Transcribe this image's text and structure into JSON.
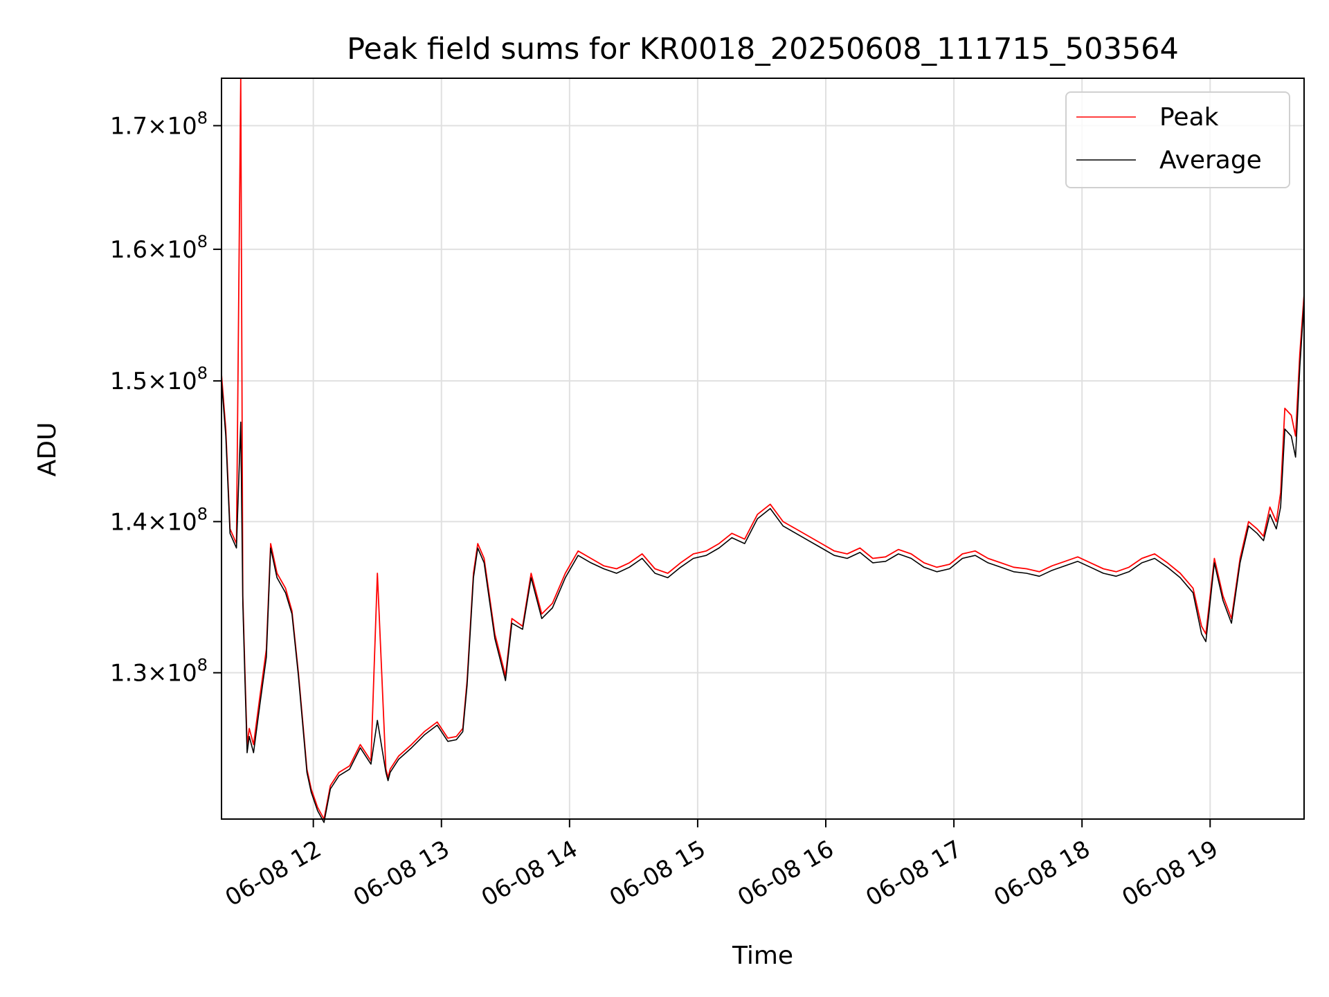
{
  "chart_data": {
    "type": "line",
    "title": "Peak field sums for KR0018_20250608_111715_503564",
    "xlabel": "Time",
    "ylabel": "ADU",
    "y_scale": "log",
    "xlim": [
      "2025-06-08 11:17",
      "2025-06-08 19:44"
    ],
    "ylim": [
      121000000,
      174000000
    ],
    "x_ticks": [
      "06-08 12",
      "06-08 13",
      "06-08 14",
      "06-08 15",
      "06-08 16",
      "06-08 17",
      "06-08 18",
      "06-08 19"
    ],
    "y_ticks": [
      {
        "value": 130000000,
        "mantissa": "1.3",
        "exp": "8"
      },
      {
        "value": 140000000,
        "mantissa": "1.4",
        "exp": "8"
      },
      {
        "value": 150000000,
        "mantissa": "1.5",
        "exp": "8"
      },
      {
        "value": 160000000,
        "mantissa": "1.6",
        "exp": "8"
      },
      {
        "value": 170000000,
        "mantissa": "1.7",
        "exp": "8"
      }
    ],
    "grid": true,
    "legend": "top-right",
    "colors": {
      "Peak": "#ff0000",
      "Average": "#000000",
      "grid": "#e0e0e0"
    },
    "series": [
      {
        "name": "Peak",
        "x": [
          "06-08 11:17",
          "06-08 11:19",
          "06-08 11:21",
          "06-08 11:24",
          "06-08 11:26",
          "06-08 11:27",
          "06-08 11:28",
          "06-08 11:29",
          "06-08 11:30",
          "06-08 11:32",
          "06-08 11:35",
          "06-08 11:38",
          "06-08 11:40",
          "06-08 11:43",
          "06-08 11:47",
          "06-08 11:50",
          "06-08 11:53",
          "06-08 11:55",
          "06-08 11:57",
          "06-08 11:59",
          "06-08 12:02",
          "06-08 12:05",
          "06-08 12:08",
          "06-08 12:12",
          "06-08 12:17",
          "06-08 12:22",
          "06-08 12:27",
          "06-08 12:30",
          "06-08 12:34",
          "06-08 12:35",
          "06-08 12:36",
          "06-08 12:40",
          "06-08 12:46",
          "06-08 12:52",
          "06-08 12:58",
          "06-08 13:03",
          "06-08 13:07",
          "06-08 13:10",
          "06-08 13:12",
          "06-08 13:15",
          "06-08 13:17",
          "06-08 13:20",
          "06-08 13:25",
          "06-08 13:30",
          "06-08 13:33",
          "06-08 13:38",
          "06-08 13:42",
          "06-08 13:47",
          "06-08 13:52",
          "06-08 13:58",
          "06-08 14:04",
          "06-08 14:10",
          "06-08 14:16",
          "06-08 14:22",
          "06-08 14:28",
          "06-08 14:34",
          "06-08 14:40",
          "06-08 14:46",
          "06-08 14:52",
          "06-08 14:58",
          "06-08 15:04",
          "06-08 15:10",
          "06-08 15:16",
          "06-08 15:22",
          "06-08 15:28",
          "06-08 15:34",
          "06-08 15:40",
          "06-08 15:46",
          "06-08 15:52",
          "06-08 15:58",
          "06-08 16:04",
          "06-08 16:10",
          "06-08 16:16",
          "06-08 16:22",
          "06-08 16:28",
          "06-08 16:34",
          "06-08 16:40",
          "06-08 16:46",
          "06-08 16:52",
          "06-08 16:58",
          "06-08 17:04",
          "06-08 17:10",
          "06-08 17:16",
          "06-08 17:22",
          "06-08 17:28",
          "06-08 17:34",
          "06-08 17:40",
          "06-08 17:46",
          "06-08 17:52",
          "06-08 17:58",
          "06-08 18:04",
          "06-08 18:10",
          "06-08 18:16",
          "06-08 18:22",
          "06-08 18:28",
          "06-08 18:34",
          "06-08 18:40",
          "06-08 18:46",
          "06-08 18:52",
          "06-08 18:56",
          "06-08 18:58",
          "06-08 19:02",
          "06-08 19:06",
          "06-08 19:10",
          "06-08 19:14",
          "06-08 19:18",
          "06-08 19:22",
          "06-08 19:25",
          "06-08 19:28",
          "06-08 19:31",
          "06-08 19:33",
          "06-08 19:35",
          "06-08 19:38",
          "06-08 19:40",
          "06-08 19:42",
          "06-08 19:44"
        ],
        "values": [
          150500000,
          146500000,
          139500000,
          138500000,
          174000000,
          135000000,
          130000000,
          125500000,
          126500000,
          125500000,
          128500000,
          131500000,
          138500000,
          136500000,
          135500000,
          134000000,
          130000000,
          127000000,
          124000000,
          122800000,
          121700000,
          121000000,
          123000000,
          123800000,
          124200000,
          125500000,
          124500000,
          136500000,
          124000000,
          123500000,
          124000000,
          124800000,
          125500000,
          126300000,
          126900000,
          125900000,
          126000000,
          126500000,
          129500000,
          136500000,
          138500000,
          137500000,
          132500000,
          129800000,
          133500000,
          133000000,
          136500000,
          133800000,
          134500000,
          136500000,
          138000000,
          137500000,
          137000000,
          136800000,
          137200000,
          137800000,
          136800000,
          136500000,
          137200000,
          137800000,
          138000000,
          138500000,
          139200000,
          138800000,
          140500000,
          141200000,
          140000000,
          139500000,
          139000000,
          138500000,
          138000000,
          137800000,
          138200000,
          137500000,
          137600000,
          138100000,
          137800000,
          137200000,
          136900000,
          137100000,
          137800000,
          138000000,
          137500000,
          137200000,
          136900000,
          136800000,
          136600000,
          137000000,
          137300000,
          137600000,
          137200000,
          136800000,
          136600000,
          136900000,
          137500000,
          137800000,
          137200000,
          136500000,
          135500000,
          133000000,
          132500000,
          137500000,
          135000000,
          133500000,
          137500000,
          140000000,
          139500000,
          139000000,
          141000000,
          140000000,
          142000000,
          148000000,
          147500000,
          146000000,
          152000000,
          156500000
        ]
      },
      {
        "name": "Average",
        "x": [
          "06-08 11:17",
          "06-08 11:19",
          "06-08 11:21",
          "06-08 11:24",
          "06-08 11:26",
          "06-08 11:27",
          "06-08 11:28",
          "06-08 11:29",
          "06-08 11:30",
          "06-08 11:32",
          "06-08 11:35",
          "06-08 11:38",
          "06-08 11:40",
          "06-08 11:43",
          "06-08 11:47",
          "06-08 11:50",
          "06-08 11:53",
          "06-08 11:55",
          "06-08 11:57",
          "06-08 11:59",
          "06-08 12:02",
          "06-08 12:05",
          "06-08 12:08",
          "06-08 12:12",
          "06-08 12:17",
          "06-08 12:22",
          "06-08 12:27",
          "06-08 12:30",
          "06-08 12:34",
          "06-08 12:35",
          "06-08 12:36",
          "06-08 12:40",
          "06-08 12:46",
          "06-08 12:52",
          "06-08 12:58",
          "06-08 13:03",
          "06-08 13:07",
          "06-08 13:10",
          "06-08 13:12",
          "06-08 13:15",
          "06-08 13:17",
          "06-08 13:20",
          "06-08 13:25",
          "06-08 13:30",
          "06-08 13:33",
          "06-08 13:38",
          "06-08 13:42",
          "06-08 13:47",
          "06-08 13:52",
          "06-08 13:58",
          "06-08 14:04",
          "06-08 14:10",
          "06-08 14:16",
          "06-08 14:22",
          "06-08 14:28",
          "06-08 14:34",
          "06-08 14:40",
          "06-08 14:46",
          "06-08 14:52",
          "06-08 14:58",
          "06-08 15:04",
          "06-08 15:10",
          "06-08 15:16",
          "06-08 15:22",
          "06-08 15:28",
          "06-08 15:34",
          "06-08 15:40",
          "06-08 15:46",
          "06-08 15:52",
          "06-08 15:58",
          "06-08 16:04",
          "06-08 16:10",
          "06-08 16:16",
          "06-08 16:22",
          "06-08 16:28",
          "06-08 16:34",
          "06-08 16:40",
          "06-08 16:46",
          "06-08 16:52",
          "06-08 16:58",
          "06-08 17:04",
          "06-08 17:10",
          "06-08 17:16",
          "06-08 17:22",
          "06-08 17:28",
          "06-08 17:34",
          "06-08 17:40",
          "06-08 17:46",
          "06-08 17:52",
          "06-08 17:58",
          "06-08 18:04",
          "06-08 18:10",
          "06-08 18:16",
          "06-08 18:22",
          "06-08 18:28",
          "06-08 18:34",
          "06-08 18:40",
          "06-08 18:46",
          "06-08 18:52",
          "06-08 18:56",
          "06-08 18:58",
          "06-08 19:02",
          "06-08 19:06",
          "06-08 19:10",
          "06-08 19:14",
          "06-08 19:18",
          "06-08 19:22",
          "06-08 19:25",
          "06-08 19:28",
          "06-08 19:31",
          "06-08 19:33",
          "06-08 19:35",
          "06-08 19:38",
          "06-08 19:40",
          "06-08 19:42",
          "06-08 19:44"
        ],
        "values": [
          150000000,
          146000000,
          139200000,
          138200000,
          147000000,
          134500000,
          129500000,
          125000000,
          126000000,
          125000000,
          128000000,
          131000000,
          138200000,
          136200000,
          135200000,
          133800000,
          129800000,
          126800000,
          123800000,
          122600000,
          121500000,
          120800000,
          122800000,
          123600000,
          124000000,
          125300000,
          124300000,
          127000000,
          123800000,
          123300000,
          123800000,
          124600000,
          125300000,
          126100000,
          126700000,
          125700000,
          125800000,
          126300000,
          129200000,
          136200000,
          138200000,
          137200000,
          132200000,
          129500000,
          133200000,
          132800000,
          136200000,
          133500000,
          134200000,
          136200000,
          137700000,
          137200000,
          136800000,
          136500000,
          136900000,
          137500000,
          136500000,
          136200000,
          136900000,
          137500000,
          137700000,
          138200000,
          138900000,
          138500000,
          140200000,
          140900000,
          139700000,
          139200000,
          138700000,
          138200000,
          137700000,
          137500000,
          137900000,
          137200000,
          137300000,
          137800000,
          137500000,
          136900000,
          136600000,
          136800000,
          137500000,
          137700000,
          137200000,
          136900000,
          136600000,
          136500000,
          136300000,
          136700000,
          137000000,
          137300000,
          136900000,
          136500000,
          136300000,
          136600000,
          137200000,
          137500000,
          136900000,
          136200000,
          135200000,
          132500000,
          132000000,
          137200000,
          134700000,
          133200000,
          137200000,
          139700000,
          139200000,
          138700000,
          140500000,
          139500000,
          141000000,
          146500000,
          146000000,
          144500000,
          151000000,
          156000000
        ]
      }
    ]
  }
}
